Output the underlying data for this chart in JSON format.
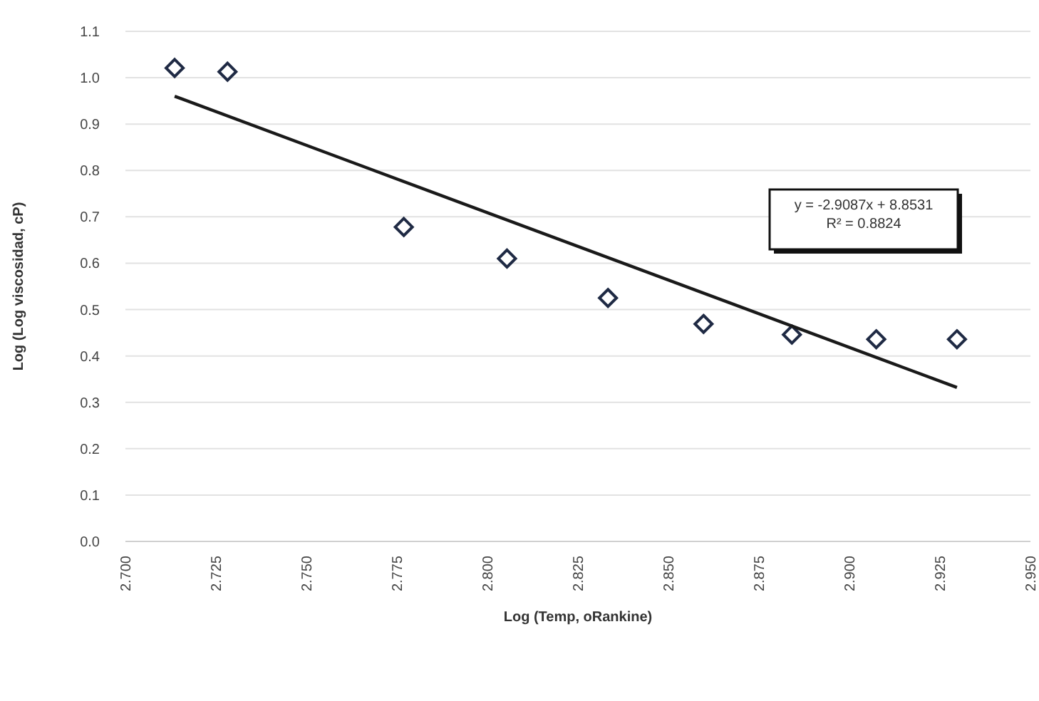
{
  "chart_data": {
    "type": "scatter",
    "xlabel": "Log (Temp, oRankine)",
    "ylabel": "Log (Log viscosidad, cP)",
    "xlim": [
      2.7,
      2.95
    ],
    "xticks": [
      {
        "value": 2.7,
        "label": "2.700"
      },
      {
        "value": 2.725,
        "label": "2.725"
      },
      {
        "value": 2.75,
        "label": "2.750"
      },
      {
        "value": 2.775,
        "label": "2.775"
      },
      {
        "value": 2.8,
        "label": "2.800"
      },
      {
        "value": 2.825,
        "label": "2.825"
      },
      {
        "value": 2.85,
        "label": "2.850"
      },
      {
        "value": 2.875,
        "label": "2.875"
      },
      {
        "value": 2.9,
        "label": "2.900"
      },
      {
        "value": 2.925,
        "label": "2.925"
      },
      {
        "value": 2.95,
        "label": "2.950"
      }
    ],
    "ylim": [
      0,
      1.1
    ],
    "yticks": [
      {
        "value": 0,
        "label": "0.0"
      },
      0.1,
      0.2,
      0.3,
      0.4,
      0.5,
      0.6,
      0.7,
      0.8,
      0.9,
      {
        "value": 1,
        "label": "1.0"
      },
      1.1
    ],
    "grid": "y",
    "marker": "diamond",
    "series": [
      {
        "color": "#1f2a44",
        "x": [
          2.7136,
          2.7282,
          2.7769,
          2.8054,
          2.8333,
          2.8597,
          2.8841,
          2.9074,
          2.9297
        ],
        "values": [
          1.021,
          1.013,
          0.678,
          0.61,
          0.525,
          0.469,
          0.446,
          0.436,
          0.436
        ]
      },
      {
        "type": "line",
        "color": "#1a1a1a",
        "marker": "none",
        "x": [
          2.7136,
          2.9297
        ],
        "values": [
          0.96,
          0.332
        ]
      }
    ],
    "annotations": [
      "y = -2.9087x + 8.8531\nR² = 0.8824"
    ]
  }
}
